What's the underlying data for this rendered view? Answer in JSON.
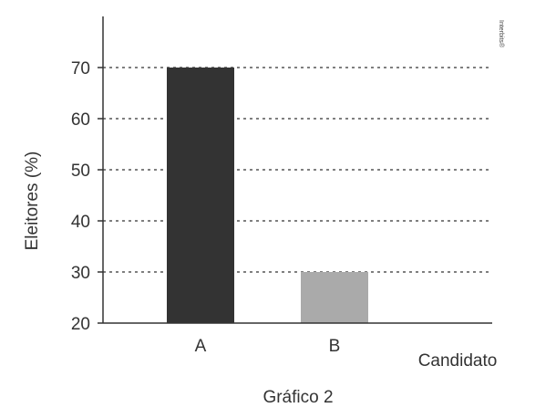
{
  "chart_data": {
    "type": "bar",
    "categories": [
      "A",
      "B"
    ],
    "values": [
      70,
      30
    ],
    "bar_colors": [
      "#333333",
      "#aaaaaa"
    ],
    "title": "",
    "caption": "Gráfico 2",
    "xlabel": "Candidato",
    "ylabel": "Eleitores (%)",
    "ylim": [
      20,
      75
    ],
    "yticks": [
      20,
      30,
      40,
      50,
      60,
      70
    ],
    "grid": "dotted horizontal at each y tick above baseline",
    "legend": "none"
  },
  "watermark": "Interbits®",
  "colors": {
    "axis": "#333333",
    "grid": "#333333",
    "text": "#333333"
  }
}
